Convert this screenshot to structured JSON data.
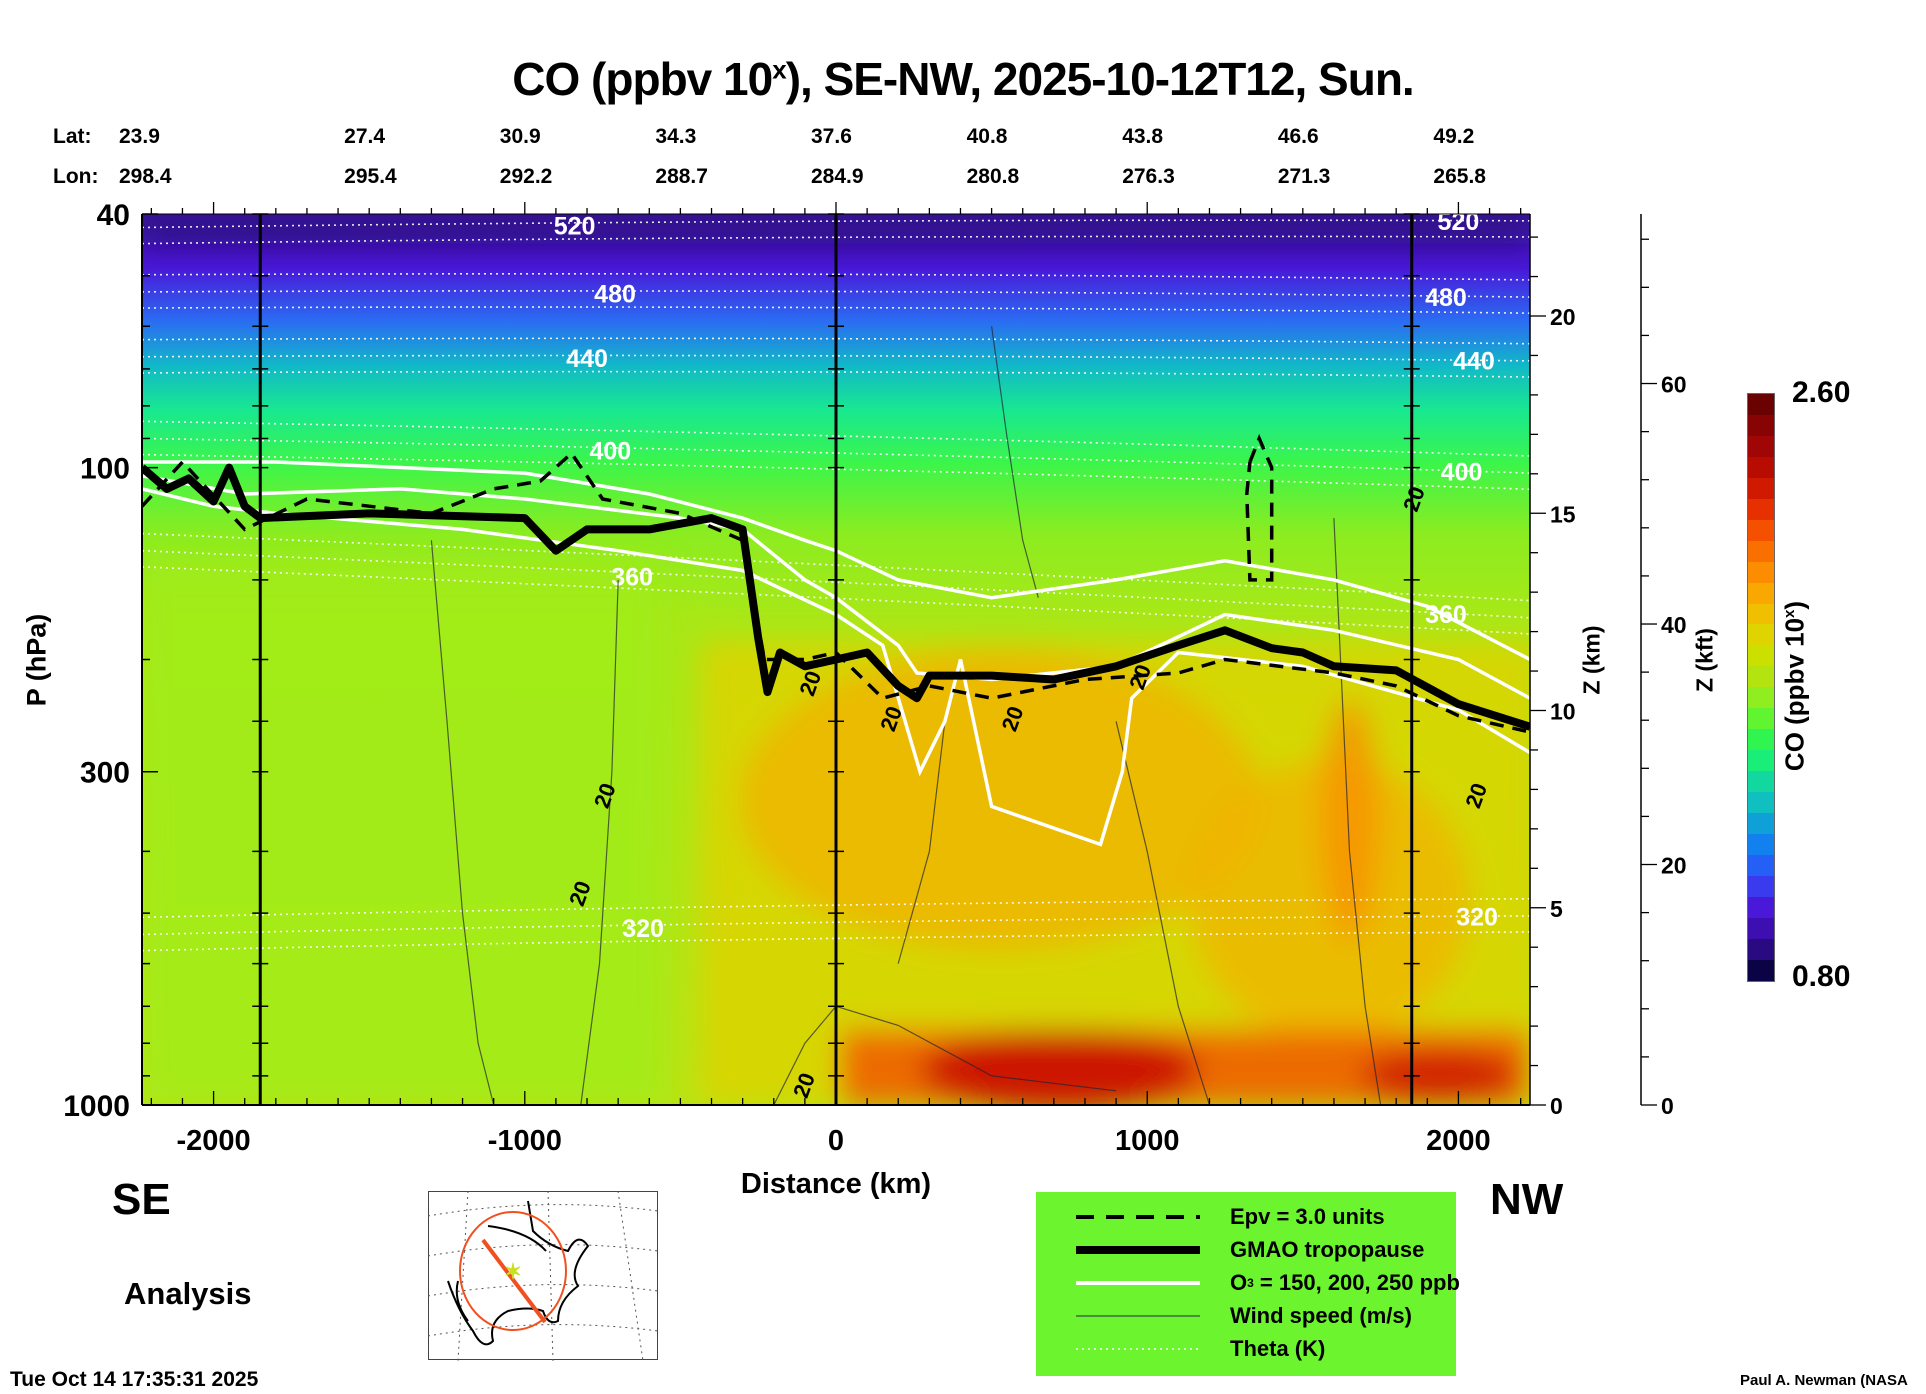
{
  "chart_data": {
    "type": "heatmap",
    "title": "CO (ppbv 10",
    "title_sup": "x",
    "title_rest": "), SE-NW, 2025-10-12T12, Sun.",
    "xlabel": "Distance (km)",
    "ylabel": "P (hPa)",
    "y2label": "Z (km)",
    "y3label": "Z (kft)",
    "xlim": [
      -2230,
      2230
    ],
    "ylim": [
      1000,
      40
    ],
    "yscale": "log",
    "xticks": [
      -2000,
      -1000,
      0,
      1000,
      2000
    ],
    "xtick_labels": [
      "-2000",
      "-1000",
      "0",
      "1000",
      "2000"
    ],
    "yticks": [
      40,
      100,
      300,
      1000
    ],
    "ytick_labels": [
      "40",
      "100",
      "300",
      "1000"
    ],
    "zkm_ticks": [
      0,
      5,
      10,
      15,
      20
    ],
    "zkm_labels": [
      "0",
      "5",
      "10",
      "15",
      "20"
    ],
    "zkft_ticks": [
      0,
      20,
      40,
      60
    ],
    "zkft_labels": [
      "0",
      "20",
      "40",
      "60"
    ],
    "lat_label": "Lat:",
    "lon_label": "Lon:",
    "lat": [
      "23.9",
      "27.4",
      "30.9",
      "34.3",
      "37.6",
      "40.8",
      "43.8",
      "46.6",
      "49.2"
    ],
    "lon": [
      "298.4",
      "295.4",
      "292.2",
      "288.7",
      "284.9",
      "280.8",
      "276.3",
      "271.3",
      "265.8"
    ],
    "latlon_distance_km": [
      -2000,
      -1500,
      -1000,
      -500,
      0,
      500,
      1000,
      1500,
      2000
    ],
    "marker_lines_km": [
      -1850,
      0,
      1850
    ],
    "colorbar": {
      "label": "CO (ppbv 10",
      "label_sup": "x",
      "label_end": ")",
      "min": 0.8,
      "max": 2.6,
      "min_label": "0.80",
      "max_label": "2.60",
      "colors": [
        "#0a0446",
        "#2a0a80",
        "#3d0fb0",
        "#4a18d8",
        "#3a3aee",
        "#2460f5",
        "#1380f0",
        "#10a0d8",
        "#10c0c0",
        "#12d8a0",
        "#18ee78",
        "#30f550",
        "#60f530",
        "#90ee20",
        "#b4e410",
        "#cce000",
        "#e0d400",
        "#f0c000",
        "#f8a800",
        "#fc8c00",
        "#fa7000",
        "#f45000",
        "#e63000",
        "#d01a00",
        "#b80c00",
        "#a00606",
        "#880404",
        "#6a0202"
      ]
    },
    "tropopause_hpa": [
      [
        -2230,
        100
      ],
      [
        -2150,
        108
      ],
      [
        -2080,
        104
      ],
      [
        -2000,
        113
      ],
      [
        -1950,
        100
      ],
      [
        -1900,
        115
      ],
      [
        -1850,
        120
      ],
      [
        -1500,
        118
      ],
      [
        -1000,
        120
      ],
      [
        -900,
        135
      ],
      [
        -800,
        125
      ],
      [
        -600,
        125
      ],
      [
        -400,
        120
      ],
      [
        -300,
        125
      ],
      [
        -250,
        185
      ],
      [
        -220,
        225
      ],
      [
        -180,
        195
      ],
      [
        -100,
        205
      ],
      [
        0,
        200
      ],
      [
        100,
        195
      ],
      [
        200,
        220
      ],
      [
        260,
        230
      ],
      [
        300,
        212
      ],
      [
        500,
        212
      ],
      [
        700,
        215
      ],
      [
        900,
        205
      ],
      [
        1100,
        190
      ],
      [
        1250,
        180
      ],
      [
        1400,
        192
      ],
      [
        1500,
        195
      ],
      [
        1600,
        205
      ],
      [
        1800,
        208
      ],
      [
        2000,
        235
      ],
      [
        2230,
        255
      ]
    ],
    "o3_lines_hpa": [
      [
        [
          -2230,
          98
        ],
        [
          -1800,
          98
        ],
        [
          -1000,
          102
        ],
        [
          -600,
          110
        ],
        [
          -300,
          120
        ],
        [
          -100,
          130
        ],
        [
          0,
          135
        ],
        [
          200,
          150
        ],
        [
          500,
          160
        ],
        [
          900,
          150
        ],
        [
          1250,
          140
        ],
        [
          1600,
          150
        ],
        [
          1900,
          165
        ],
        [
          2230,
          200
        ]
      ],
      [
        [
          -2230,
          103
        ],
        [
          -1900,
          110
        ],
        [
          -1400,
          108
        ],
        [
          -1000,
          112
        ],
        [
          -500,
          120
        ],
        [
          -300,
          125
        ],
        [
          -100,
          150
        ],
        [
          0,
          160
        ],
        [
          200,
          190
        ],
        [
          260,
          210
        ],
        [
          500,
          215
        ],
        [
          900,
          205
        ],
        [
          1250,
          170
        ],
        [
          1600,
          180
        ],
        [
          2000,
          200
        ],
        [
          2230,
          230
        ]
      ],
      [
        [
          -2230,
          108
        ],
        [
          -2000,
          115
        ],
        [
          -1800,
          118
        ],
        [
          -1200,
          125
        ],
        [
          -700,
          135
        ],
        [
          -300,
          145
        ],
        [
          0,
          170
        ],
        [
          150,
          190
        ],
        [
          270,
          300
        ],
        [
          350,
          250
        ],
        [
          400,
          200
        ],
        [
          500,
          340
        ],
        [
          850,
          390
        ],
        [
          920,
          300
        ],
        [
          950,
          230
        ],
        [
          1100,
          195
        ],
        [
          1500,
          205
        ],
        [
          2000,
          240
        ],
        [
          2230,
          280
        ]
      ]
    ],
    "epv_line_hpa": [
      [
        -2230,
        115
      ],
      [
        -2100,
        98
      ],
      [
        -1900,
        125
      ],
      [
        -1700,
        112
      ],
      [
        -1300,
        118
      ],
      [
        -1100,
        108
      ],
      [
        -950,
        105
      ],
      [
        -850,
        95
      ],
      [
        -750,
        112
      ],
      [
        -500,
        118
      ],
      [
        -300,
        130
      ],
      [
        -230,
        200
      ],
      [
        -100,
        200
      ],
      [
        0,
        195
      ],
      [
        150,
        230
      ],
      [
        300,
        220
      ],
      [
        500,
        230
      ],
      [
        800,
        215
      ],
      [
        1100,
        210
      ],
      [
        1250,
        200
      ],
      [
        1600,
        210
      ],
      [
        1800,
        220
      ],
      [
        2000,
        245
      ],
      [
        2230,
        260
      ]
    ],
    "epv_loop_hpa": [
      [
        1330,
        98
      ],
      [
        1360,
        90
      ],
      [
        1400,
        100
      ],
      [
        1400,
        150
      ],
      [
        1330,
        150
      ],
      [
        1320,
        110
      ],
      [
        1330,
        98
      ]
    ],
    "theta_levels": [
      {
        "label": "520",
        "p_left": 42,
        "p_right": 41,
        "label_km": [
          -840,
          2000
        ]
      },
      {
        "label": "480",
        "p_left": 53,
        "p_right": 54,
        "label_km": [
          -710,
          1960
        ]
      },
      {
        "label": "440",
        "p_left": 67,
        "p_right": 68,
        "label_km": [
          -800,
          2050
        ]
      },
      {
        "label": "400",
        "p_left": 90,
        "p_right": 102,
        "label_km": [
          -725,
          2010
        ]
      },
      {
        "label": "360",
        "p_left": 135,
        "p_right": 172,
        "label_km": [
          -655,
          1960
        ]
      },
      {
        "label": "320",
        "p_left": 540,
        "p_right": 505,
        "label_km": [
          -620,
          2060
        ]
      }
    ],
    "wind_labels": [
      {
        "label": "20",
        "km": -720,
        "p": 330
      },
      {
        "label": "20",
        "km": -800,
        "p": 470
      },
      {
        "label": "20",
        "km": -60,
        "p": 220
      },
      {
        "label": "20",
        "km": 200,
        "p": 250
      },
      {
        "label": "20",
        "km": 590,
        "p": 250
      },
      {
        "label": "20",
        "km": 1000,
        "p": 215
      },
      {
        "label": "20",
        "km": 1880,
        "p": 113
      },
      {
        "label": "20",
        "km": 2080,
        "p": 330
      },
      {
        "label": "20",
        "km": -80,
        "p": 940
      }
    ]
  },
  "labels": {
    "se": "SE",
    "nw": "NW",
    "analysis": "Analysis",
    "timestamp": "Tue Oct 14 17:35:31 2025",
    "author": "Paul A. Newman (NASA"
  },
  "legend": {
    "items": [
      {
        "label": "Epv = 3.0 units",
        "style": "dashed"
      },
      {
        "label": "GMAO tropopause",
        "style": "thick"
      },
      {
        "label_main": "O",
        "label_sub": "3",
        "label_rest": " = 150, 200, 250 ppb",
        "style": "white"
      },
      {
        "label": "Wind speed (m/s)",
        "style": "thin"
      },
      {
        "label": "Theta (K)",
        "style": "dotted"
      }
    ]
  }
}
